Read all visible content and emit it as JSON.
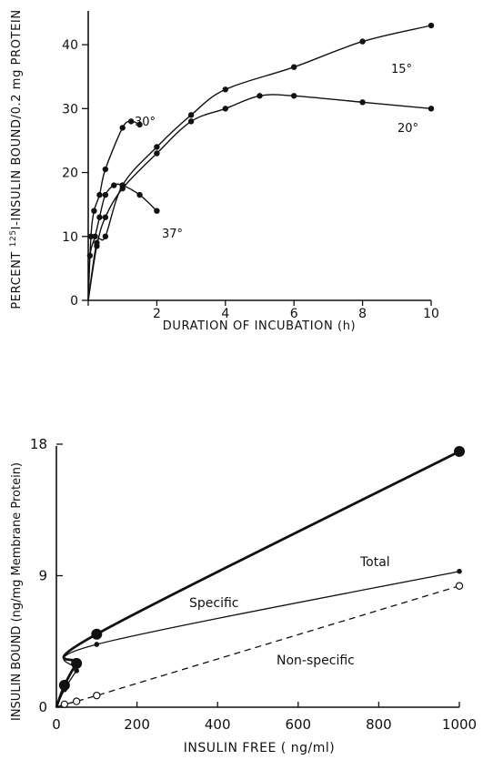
{
  "chart_data": [
    {
      "type": "line",
      "title": "",
      "xlabel": "DURATION OF INCUBATION (h)",
      "ylabel_parts": {
        "pre": "PERCENT ",
        "sup": "125",
        "post": "I-INSULIN BOUND/0.2 mg PROTEIN"
      },
      "xlim": [
        0,
        10
      ],
      "ylim": [
        0,
        45
      ],
      "xticks": [
        0,
        2,
        4,
        6,
        8,
        10
      ],
      "yticks": [
        0,
        10,
        20,
        30,
        40
      ],
      "grid": false,
      "series": [
        {
          "name": "15°",
          "x": [
            0,
            0.25,
            0.5,
            1,
            2,
            3,
            4,
            6,
            8,
            10
          ],
          "y": [
            0,
            9,
            10,
            18,
            24,
            29,
            33,
            36.5,
            40.5,
            43
          ]
        },
        {
          "name": "20°",
          "x": [
            0,
            0.25,
            0.5,
            1,
            2,
            3,
            4,
            5,
            6,
            8,
            10
          ],
          "y": [
            0,
            8.5,
            13,
            17.5,
            23,
            28,
            30,
            32,
            32,
            31,
            30
          ]
        },
        {
          "name": "30°",
          "x": [
            0,
            0.08,
            0.17,
            0.33,
            0.5,
            1,
            1.25,
            1.5
          ],
          "y": [
            0,
            10,
            14,
            16.5,
            20.5,
            27,
            28,
            27.5
          ]
        },
        {
          "name": "37°",
          "x": [
            0,
            0.05,
            0.2,
            0.33,
            0.5,
            0.75,
            1,
            1.5,
            2
          ],
          "y": [
            0,
            7,
            10,
            13,
            16.5,
            18,
            18,
            16.5,
            14
          ]
        }
      ]
    },
    {
      "type": "line",
      "title": "",
      "xlabel": "INSULIN FREE ( ng/ml)",
      "ylabel": "INSULIN BOUND (ng/mg Membrane Protein)",
      "xlim": [
        0,
        1000
      ],
      "ylim": [
        0,
        18
      ],
      "xticks": [
        0,
        200,
        400,
        600,
        800,
        1000
      ],
      "yticks": [
        0,
        9,
        18
      ],
      "grid": false,
      "series": [
        {
          "name": "Total",
          "style": "solid-bold",
          "marker": "filled-large",
          "x": [
            0,
            20,
            50,
            100,
            1000
          ],
          "y": [
            0,
            1.5,
            3,
            5,
            17.5
          ]
        },
        {
          "name": "Specific",
          "style": "solid-thin",
          "marker": "filled-small",
          "x": [
            0,
            20,
            50,
            100,
            1000
          ],
          "y": [
            0,
            1.2,
            2.5,
            4.3,
            9.3
          ]
        },
        {
          "name": "Non-specific",
          "style": "dashed",
          "marker": "open",
          "x": [
            0,
            20,
            50,
            100,
            1000
          ],
          "y": [
            0,
            0.2,
            0.4,
            0.8,
            8.3
          ]
        }
      ]
    }
  ]
}
